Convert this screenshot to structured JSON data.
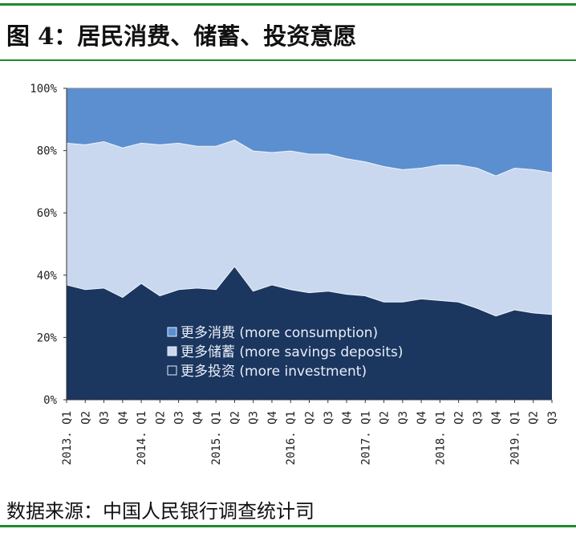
{
  "title": "图 4：居民消费、储蓄、投资意愿",
  "source": "数据来源：中国人民银行调查统计司",
  "chart_data": {
    "type": "area",
    "stacked": "percent",
    "categories": [
      "2013. Q1",
      "Q2",
      "Q3",
      "Q4",
      "2014. Q1",
      "Q2",
      "Q3",
      "Q4",
      "2015. Q1",
      "Q2",
      "Q3",
      "Q4",
      "2016. Q1",
      "Q2",
      "Q3",
      "Q4",
      "2017. Q1",
      "Q2",
      "Q3",
      "Q4",
      "2018. Q1",
      "Q2",
      "Q3",
      "Q4",
      "2019. Q1",
      "Q2",
      "Q3"
    ],
    "ylim": [
      0,
      100
    ],
    "yticks": [
      "0%",
      "20%",
      "40%",
      "60%",
      "80%",
      "100%"
    ],
    "grid": false,
    "legend_position": "bottom-center inside",
    "series": [
      {
        "name": "更多投资 (more investment)",
        "color": "#1b365f",
        "values": [
          37,
          35.5,
          36,
          33,
          37.5,
          33.5,
          35.5,
          36,
          35.5,
          43,
          35,
          37,
          35.5,
          34.5,
          35,
          34,
          33.5,
          31.5,
          31.5,
          32.5,
          32,
          31.5,
          29.5,
          27,
          29,
          28,
          27.5
        ]
      },
      {
        "name": "更多储蓄 (more savings deposits)",
        "color": "#c9d8ee",
        "values": [
          45.5,
          46.5,
          47,
          48,
          45,
          48.5,
          47,
          45.5,
          46,
          40.5,
          45,
          42.5,
          44.5,
          44.5,
          44,
          43.5,
          43,
          43.5,
          42.5,
          42,
          43.5,
          44,
          45,
          45,
          45.5,
          46,
          45.5
        ]
      },
      {
        "name": "更多消费 (more consumption)",
        "color": "#5b8fcf",
        "values": [
          17.5,
          18,
          17,
          19,
          17.5,
          18,
          17.5,
          18.5,
          18.5,
          16.5,
          20,
          20.5,
          20,
          21,
          21,
          22.5,
          23.5,
          25,
          26,
          25.5,
          24.5,
          24.5,
          25.5,
          28,
          25.5,
          26,
          27
        ]
      }
    ],
    "legend": [
      {
        "label": "更多消费 (more consumption)",
        "marker": "#5b8fcf"
      },
      {
        "label": "更多储蓄 (more savings deposits)",
        "marker": "#c9d8ee"
      },
      {
        "label": "更多投资 (more investment)",
        "marker": "none"
      }
    ]
  }
}
